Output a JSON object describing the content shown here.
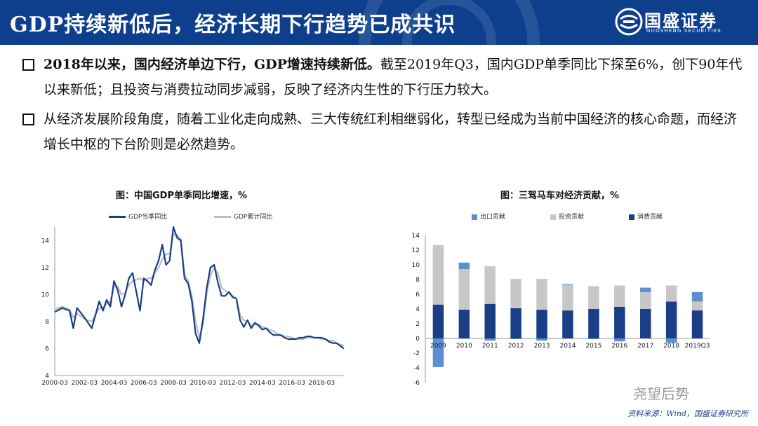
{
  "header": {
    "title": "GDP持续新低后，经济长期下行趋势已成共识",
    "logo_name": "国盛证券",
    "logo_sub": "GUOSHENG SECURITIES",
    "colors": {
      "bar": "#0e3f8d",
      "text": "#ffffff"
    }
  },
  "bullets": [
    {
      "bold": "2018年以来，国内经济单边下行，GDP增速持续新低。",
      "text": "截至2019年Q3，国内GDP单季同比下探至6%，创下90年代以来新低；且投资与消费拉动同步减弱，反映了经济内生性的下行压力较大。"
    },
    {
      "bold": "",
      "text": "从经济发展阶段角度，随着工业化走向成熟、三大传统红利相继弱化，转型已经成为当前中国经济的核心命题，而经济增长中枢的下台阶则是必然趋势。"
    }
  ],
  "chart_data": [
    {
      "type": "line",
      "title": "图：中国GDP单季同比增速，%",
      "xlabel": "",
      "ylabel": "",
      "ylim": [
        4,
        15
      ],
      "yticks": [
        "4",
        "6",
        "8",
        "10",
        "12",
        "14"
      ],
      "x_ticks": [
        "2000-03",
        "2002-03",
        "2004-03",
        "2006-03",
        "2008-03",
        "2010-03",
        "2012-03",
        "2014-03",
        "2016-03",
        "2018-03"
      ],
      "x_range": [
        "2000-03",
        "2019-09"
      ],
      "legend_position": "top",
      "series": [
        {
          "name": "GDP当季同比",
          "color": "#1a3f86",
          "points": [
            [
              "2000-03",
              8.7
            ],
            [
              "2000-09",
              9.0
            ],
            [
              "2001-03",
              8.8
            ],
            [
              "2001-06",
              7.5
            ],
            [
              "2001-09",
              9.0
            ],
            [
              "2002-03",
              8.3
            ],
            [
              "2002-09",
              7.5
            ],
            [
              "2003-03",
              9.5
            ],
            [
              "2003-06",
              8.8
            ],
            [
              "2003-09",
              9.6
            ],
            [
              "2003-12",
              9.1
            ],
            [
              "2004-03",
              11.0
            ],
            [
              "2004-06",
              10.3
            ],
            [
              "2004-09",
              9.1
            ],
            [
              "2004-12",
              10.0
            ],
            [
              "2005-03",
              11.2
            ],
            [
              "2005-06",
              11.6
            ],
            [
              "2005-09",
              10.2
            ],
            [
              "2005-12",
              8.8
            ],
            [
              "2006-03",
              11.2
            ],
            [
              "2006-06",
              11.0
            ],
            [
              "2006-09",
              10.7
            ],
            [
              "2006-12",
              11.8
            ],
            [
              "2007-03",
              12.5
            ],
            [
              "2007-06",
              13.7
            ],
            [
              "2007-09",
              12.2
            ],
            [
              "2007-12",
              12.5
            ],
            [
              "2008-03",
              15.0
            ],
            [
              "2008-06",
              14.2
            ],
            [
              "2008-09",
              14.0
            ],
            [
              "2008-12",
              11.2
            ],
            [
              "2009-03",
              10.8
            ],
            [
              "2009-06",
              9.5
            ],
            [
              "2009-09",
              7.1
            ],
            [
              "2009-12",
              6.4
            ],
            [
              "2010-03",
              8.2
            ],
            [
              "2010-06",
              10.5
            ],
            [
              "2010-09",
              12.0
            ],
            [
              "2010-12",
              12.2
            ],
            [
              "2011-03",
              10.9
            ],
            [
              "2011-06",
              9.9
            ],
            [
              "2011-09",
              9.9
            ],
            [
              "2011-12",
              10.2
            ],
            [
              "2012-03",
              9.8
            ],
            [
              "2012-06",
              9.7
            ],
            [
              "2012-09",
              8.1
            ],
            [
              "2012-12",
              7.6
            ],
            [
              "2013-03",
              8.1
            ],
            [
              "2013-06",
              7.5
            ],
            [
              "2013-09",
              7.9
            ],
            [
              "2013-12",
              7.7
            ],
            [
              "2014-03",
              7.4
            ],
            [
              "2014-06",
              7.5
            ],
            [
              "2014-09",
              7.2
            ],
            [
              "2014-12",
              7.0
            ],
            [
              "2015-03",
              7.0
            ],
            [
              "2015-06",
              7.0
            ],
            [
              "2015-09",
              6.8
            ],
            [
              "2015-12",
              6.7
            ],
            [
              "2016-03",
              6.7
            ],
            [
              "2016-06",
              6.7
            ],
            [
              "2016-09",
              6.8
            ],
            [
              "2016-12",
              6.8
            ],
            [
              "2017-03",
              6.9
            ],
            [
              "2017-06",
              6.9
            ],
            [
              "2017-09",
              6.8
            ],
            [
              "2017-12",
              6.8
            ],
            [
              "2018-03",
              6.8
            ],
            [
              "2018-06",
              6.7
            ],
            [
              "2018-09",
              6.5
            ],
            [
              "2018-12",
              6.4
            ],
            [
              "2019-03",
              6.4
            ],
            [
              "2019-06",
              6.2
            ],
            [
              "2019-09",
              6.0
            ]
          ]
        },
        {
          "name": "GDP累计同比",
          "color": "#bdbdbd",
          "points": [
            [
              "2000-03",
              8.9
            ],
            [
              "2000-09",
              9.1
            ],
            [
              "2001-03",
              8.9
            ],
            [
              "2001-06",
              8.3
            ],
            [
              "2001-09",
              8.6
            ],
            [
              "2002-03",
              8.2
            ],
            [
              "2002-09",
              8.0
            ],
            [
              "2003-03",
              9.0
            ],
            [
              "2003-06",
              9.0
            ],
            [
              "2003-09",
              9.3
            ],
            [
              "2003-12",
              9.5
            ],
            [
              "2004-03",
              10.6
            ],
            [
              "2004-06",
              10.6
            ],
            [
              "2004-09",
              10.0
            ],
            [
              "2004-12",
              10.1
            ],
            [
              "2005-03",
              10.7
            ],
            [
              "2005-06",
              11.0
            ],
            [
              "2005-09",
              11.1
            ],
            [
              "2005-12",
              11.2
            ],
            [
              "2006-03",
              11.0
            ],
            [
              "2006-06",
              11.2
            ],
            [
              "2006-09",
              11.2
            ],
            [
              "2006-12",
              11.6
            ],
            [
              "2007-03",
              12.0
            ],
            [
              "2007-06",
              12.6
            ],
            [
              "2007-09",
              13.0
            ],
            [
              "2007-12",
              13.0
            ],
            [
              "2008-03",
              14.5
            ],
            [
              "2008-06",
              14.4
            ],
            [
              "2008-09",
              14.1
            ],
            [
              "2008-12",
              11.5
            ],
            [
              "2009-03",
              11.0
            ],
            [
              "2009-06",
              9.9
            ],
            [
              "2009-09",
              8.0
            ],
            [
              "2009-12",
              6.8
            ],
            [
              "2010-03",
              7.8
            ],
            [
              "2010-06",
              10.1
            ],
            [
              "2010-09",
              11.4
            ],
            [
              "2010-12",
              12.0
            ],
            [
              "2011-03",
              11.6
            ],
            [
              "2011-06",
              10.5
            ],
            [
              "2011-09",
              10.3
            ],
            [
              "2011-12",
              10.1
            ],
            [
              "2012-03",
              9.9
            ],
            [
              "2012-06",
              9.7
            ],
            [
              "2012-09",
              8.5
            ],
            [
              "2012-12",
              8.1
            ],
            [
              "2013-03",
              8.0
            ],
            [
              "2013-06",
              7.7
            ],
            [
              "2013-09",
              7.8
            ],
            [
              "2013-12",
              7.8
            ],
            [
              "2014-03",
              7.6
            ],
            [
              "2014-06",
              7.5
            ],
            [
              "2014-09",
              7.4
            ],
            [
              "2014-12",
              7.3
            ],
            [
              "2015-03",
              7.1
            ],
            [
              "2015-06",
              7.0
            ],
            [
              "2015-09",
              6.9
            ],
            [
              "2015-12",
              6.9
            ],
            [
              "2016-03",
              6.8
            ],
            [
              "2016-06",
              6.7
            ],
            [
              "2016-09",
              6.7
            ],
            [
              "2016-12",
              6.7
            ],
            [
              "2017-03",
              6.8
            ],
            [
              "2017-06",
              6.8
            ],
            [
              "2017-09",
              6.8
            ],
            [
              "2017-12",
              6.8
            ],
            [
              "2018-03",
              6.7
            ],
            [
              "2018-06",
              6.7
            ],
            [
              "2018-09",
              6.6
            ],
            [
              "2018-12",
              6.6
            ],
            [
              "2019-03",
              6.4
            ],
            [
              "2019-06",
              6.3
            ],
            [
              "2019-09",
              6.2
            ]
          ]
        }
      ]
    },
    {
      "type": "bar",
      "stacked": true,
      "title": "图：三驾马车对经济贡献，%",
      "xlabel": "",
      "ylabel": "",
      "ylim": [
        -6,
        14
      ],
      "yticks": [
        "-6",
        "-4",
        "-2",
        "0",
        "2",
        "4",
        "6",
        "8",
        "10",
        "12",
        "14"
      ],
      "legend_position": "top",
      "categories": [
        "2009",
        "2010",
        "2011",
        "2012",
        "2013",
        "2014",
        "2015",
        "2016",
        "2017",
        "2018",
        "2019Q3"
      ],
      "series": [
        {
          "name": "出口贡献",
          "color": "#5b8fd0",
          "values": [
            -3.9,
            0.9,
            -0.3,
            -0.1,
            -0.3,
            0.1,
            -0.1,
            -0.4,
            0.6,
            -0.6,
            1.3
          ]
        },
        {
          "name": "投资贡献",
          "color": "#c7c7c7",
          "values": [
            8.1,
            5.5,
            5.1,
            4.0,
            4.2,
            3.5,
            3.1,
            2.9,
            2.3,
            2.2,
            1.2
          ]
        },
        {
          "name": "消费贡献",
          "color": "#1a3f86",
          "values": [
            4.6,
            3.9,
            4.7,
            4.1,
            3.9,
            3.8,
            4.0,
            4.3,
            4.0,
            5.0,
            3.8
          ]
        }
      ]
    }
  ],
  "source": "资料来源：Wind，国盛证券研究所",
  "watermark": "尧望后势"
}
